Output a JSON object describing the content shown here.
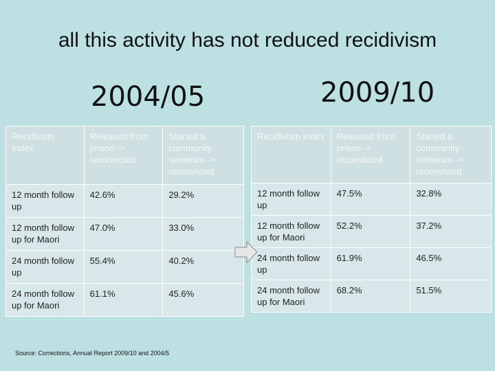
{
  "title": "all this activity has not reduced recidivism",
  "left": {
    "year": "2004/05",
    "headers": [
      "Recidivism Index",
      "Released from prison -> reconvicted",
      "Started a community sentence -> reconvicted"
    ],
    "rows": [
      [
        "12 month follow up",
        "42.6%",
        "29.2%"
      ],
      [
        "12 month follow up for Maori",
        "47.0%",
        "33.0%"
      ],
      [
        "24 month follow up",
        "55.4%",
        "40.2%"
      ],
      [
        "24 month follow up for Maori",
        "61.1%",
        "45.6%"
      ]
    ]
  },
  "right": {
    "year": "2009/10",
    "headers": [
      "Recidivism Index",
      "Released from prison -> reconvicted",
      "Started a community sentence -> reconvicted"
    ],
    "rows": [
      [
        "12 month follow up",
        "47.5%",
        "32.8%"
      ],
      [
        "12 month follow up for Maori",
        "52.2%",
        "37.2%"
      ],
      [
        "24 month follow up",
        "61.9%",
        "46.5%"
      ],
      [
        "24 month follow up for Maori",
        "68.2%",
        "51.5%"
      ]
    ]
  },
  "source": "Source: Corrections, Annual Report 2009/10 and 2004/5",
  "colors": {
    "background": "#bde0e3",
    "table_cell": "#d8e7e9",
    "header_text": "#f4f8f8",
    "arrow_fill": "#e6e6e6"
  },
  "icons": [
    "right-arrow-icon"
  ]
}
